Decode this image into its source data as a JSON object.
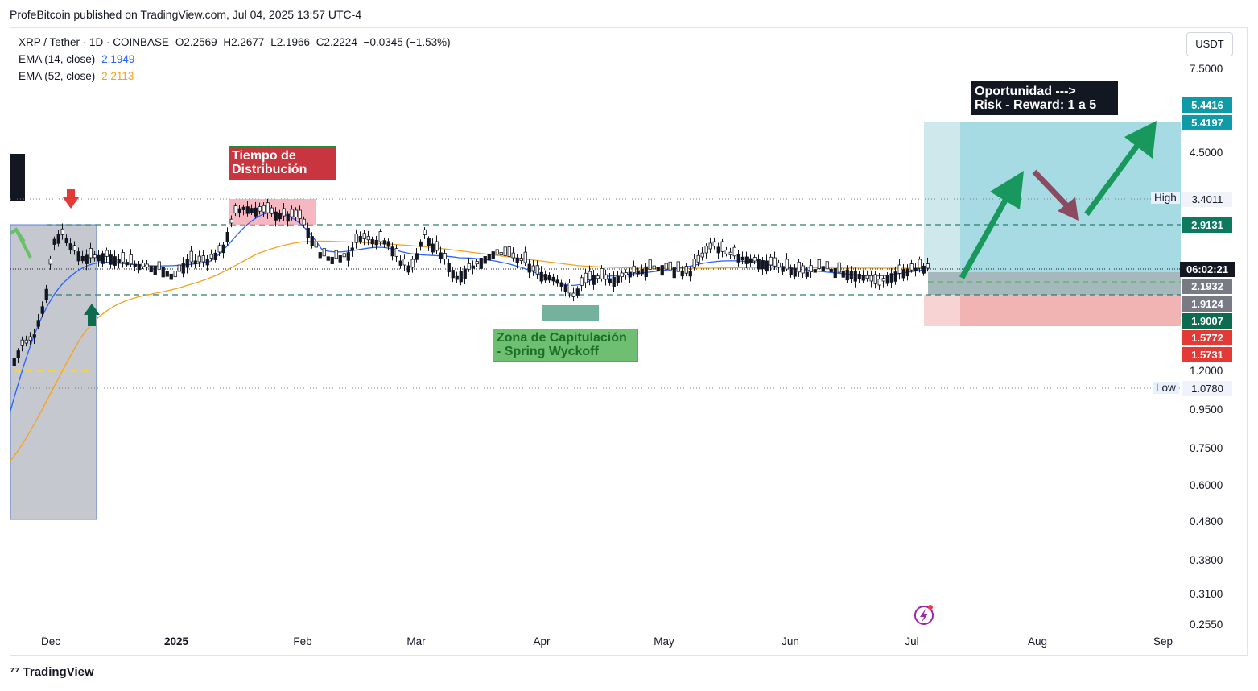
{
  "header": {
    "publisher_line": "ProfeBitcoin published on TradingView.com, Jul 04, 2025 13:57 UTC-4"
  },
  "legend": {
    "symbol_line": "XRP / Tether · 1D · COINBASE",
    "ohlc": {
      "o": "O2.2569",
      "h": "H2.2677",
      "l": "L2.1966",
      "c": "C2.2224",
      "chg": "−0.0345 (−1.53%)"
    },
    "ema14": {
      "label": "EMA (14, close)",
      "value": "2.1949",
      "color": "#2962ff"
    },
    "ema52": {
      "label": "EMA (52, close)",
      "value": "2.2113",
      "color": "#f7a21b"
    }
  },
  "currency": "USDT",
  "y_ticks": [
    "7.5000",
    "4.5000",
    "1.2000",
    "0.9500",
    "0.7500",
    "0.6000",
    "0.4800",
    "0.3800",
    "0.3100",
    "0.2550"
  ],
  "x_ticks": [
    "Dec",
    "2025",
    "Feb",
    "Mar",
    "Apr",
    "May",
    "Jun",
    "Jul",
    "Aug",
    "Sep"
  ],
  "price_tags": [
    {
      "value": "5.4416",
      "color": "#0e9aa7"
    },
    {
      "value": "5.4197",
      "color": "#0e9aa7"
    },
    {
      "value": "3.4011",
      "color": "#f0f3fa",
      "text_color": "#131722"
    },
    {
      "value": "2.9131",
      "color": "#0d7a5f"
    },
    {
      "value": "06:02:21",
      "color": "#131722"
    },
    {
      "value": "2.1932",
      "color": "#787b86"
    },
    {
      "value": "1.9124",
      "color": "#787b86"
    },
    {
      "value": "1.9007",
      "color": "#0d6b4f"
    },
    {
      "value": "1.5772",
      "color": "#e53935"
    },
    {
      "value": "1.5731",
      "color": "#e53935"
    },
    {
      "value": "1.0780",
      "color": "#f0f3fa",
      "text_color": "#131722"
    }
  ],
  "high_label": "High",
  "low_label": "Low",
  "annotations": {
    "distribution": "Tiempo de\nDistribución",
    "capitulation": "Zona de Capitulación\n- Spring Wyckoff",
    "opportunity": "Oportunidad --->\nRisk - Reward: 1 a 5"
  },
  "colors": {
    "up_candle": "#ffffff",
    "down_candle": "#131722",
    "reward_zone": "#8fd0da",
    "risk_zone": "#f4b5b5"
  },
  "footer": {
    "brand": "TradingView"
  }
}
